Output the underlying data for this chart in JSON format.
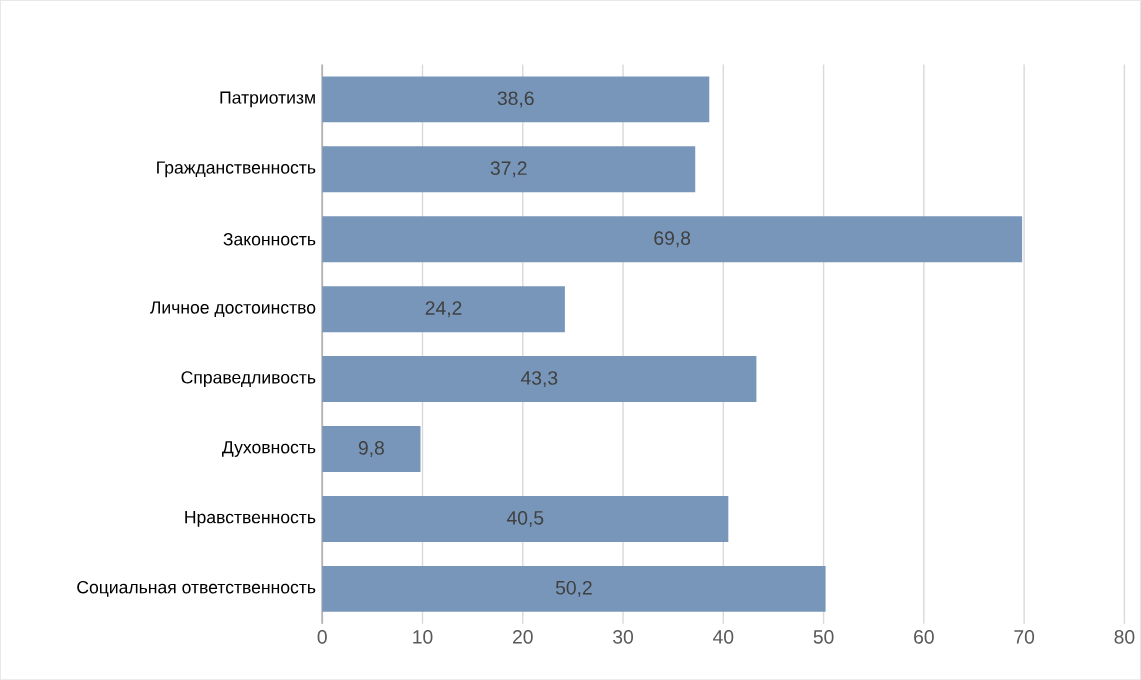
{
  "chart_data": {
    "type": "bar",
    "orientation": "horizontal",
    "categories": [
      "Патриотизм",
      "Гражданственность",
      "Законность",
      "Личное достоинство",
      "Справедливость",
      "Духовность",
      "Нравственность",
      "Социальная ответственность"
    ],
    "values": [
      38.6,
      37.2,
      69.8,
      24.2,
      43.3,
      9.8,
      40.5,
      50.2
    ],
    "value_labels": [
      "38,6",
      "37,2",
      "69,8",
      "24,2",
      "43,3",
      "9,8",
      "40,5",
      "50,2"
    ],
    "color": "#7896b9",
    "xlim": [
      0,
      80
    ],
    "xticks": [
      0,
      10,
      20,
      30,
      40,
      50,
      60,
      70,
      80
    ],
    "grid": "x"
  }
}
